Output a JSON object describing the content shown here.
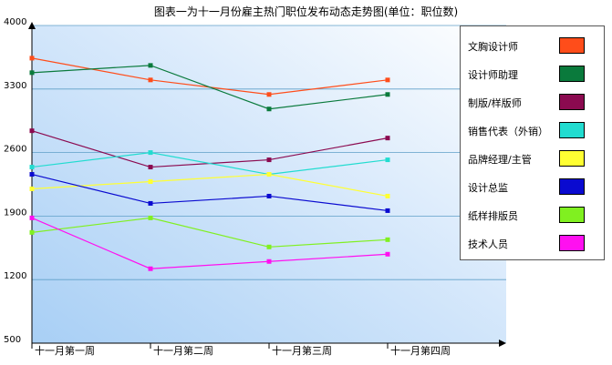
{
  "chart_data": {
    "type": "line",
    "title": "图表一为十一月份雇主热门职位发布动态走势图(单位：职位数)",
    "xlabel": "",
    "ylabel": "",
    "categories": [
      "十一月第一周",
      "十一月第二周",
      "十一月第三周",
      "十一月第四周"
    ],
    "ylim": [
      500,
      4000
    ],
    "yticks": [
      500,
      1200,
      1900,
      2600,
      3300,
      4000
    ],
    "grid": true,
    "legend_position": "right",
    "series": [
      {
        "name": "文胸设计师",
        "color": "#ff4d1a",
        "values": [
          3640,
          3400,
          3240,
          3400
        ]
      },
      {
        "name": "设计师助理",
        "color": "#0a7a3c",
        "values": [
          3480,
          3560,
          3080,
          3240
        ]
      },
      {
        "name": "制版/样版师",
        "color": "#8b0a50",
        "values": [
          2840,
          2440,
          2520,
          2760
        ]
      },
      {
        "name": "销售代表（外销）",
        "color": "#22dcd0",
        "values": [
          2440,
          2600,
          2360,
          2520
        ]
      },
      {
        "name": "品牌经理/主管",
        "color": "#ffff33",
        "values": [
          2200,
          2280,
          2360,
          2120
        ]
      },
      {
        "name": "设计总监",
        "color": "#0a0ad0",
        "values": [
          2360,
          2040,
          2120,
          1960
        ]
      },
      {
        "name": "纸样排版员",
        "color": "#80f020",
        "values": [
          1720,
          1880,
          1560,
          1640
        ]
      },
      {
        "name": "技术人员",
        "color": "#ff10f0",
        "values": [
          1880,
          1320,
          1400,
          1480
        ]
      }
    ]
  }
}
